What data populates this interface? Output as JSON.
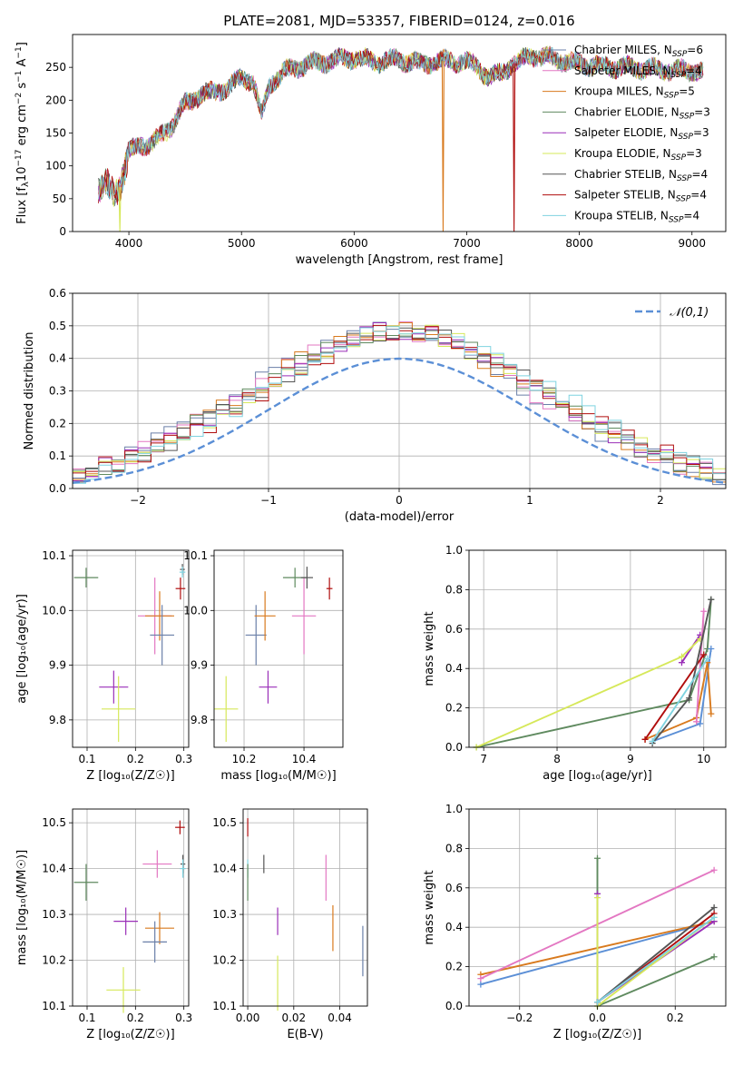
{
  "title": "PLATE=2081, MJD=53357, FIBERID=0124, z=0.016",
  "models": [
    {
      "name": "Chabrier MILES",
      "nssp": "6",
      "color": "#6a7fa8"
    },
    {
      "name": "Salpeter MILES",
      "nssp": "4",
      "color": "#e377c2"
    },
    {
      "name": "Kroupa MILES",
      "nssp": "5",
      "color": "#d87a1e"
    },
    {
      "name": "Chabrier ELODIE",
      "nssp": "3",
      "color": "#5f8a5f"
    },
    {
      "name": "Salpeter ELODIE",
      "nssp": "3",
      "color": "#9a2fb8"
    },
    {
      "name": "Kroupa ELODIE",
      "nssp": "3",
      "color": "#d6e85a"
    },
    {
      "name": "Chabrier STELIB",
      "nssp": "4",
      "color": "#555555"
    },
    {
      "name": "Salpeter STELIB",
      "nssp": "4",
      "color": "#b00d0d"
    },
    {
      "name": "Kroupa STELIB",
      "nssp": "4",
      "color": "#7fd3e0"
    }
  ],
  "chart_data": [
    {
      "id": "spectrum",
      "type": "line",
      "xlabel": "wavelength [Angstrom, rest frame]",
      "ylabel": "Flux [f",
      "xlim": [
        3500,
        9300
      ],
      "ylim": [
        0,
        300
      ],
      "xticks": [
        4000,
        5000,
        6000,
        7000,
        8000,
        9000
      ],
      "yticks": [
        0,
        50,
        100,
        150,
        200,
        250
      ],
      "legend": "upper right",
      "spectrum_envelope": {
        "x": [
          3730,
          3800,
          3870,
          3930,
          4000,
          4100,
          4200,
          4300,
          4400,
          4500,
          4600,
          4700,
          4800,
          4900,
          5000,
          5100,
          5180,
          5250,
          5400,
          5600,
          5800,
          6000,
          6200,
          6400,
          6600,
          6800,
          7000,
          7100,
          7200,
          7300,
          7400,
          7600,
          7800,
          8000,
          8200,
          8400,
          8600,
          8800,
          9000,
          9100
        ],
        "y": [
          60,
          80,
          55,
          70,
          120,
          135,
          130,
          150,
          165,
          195,
          205,
          210,
          215,
          220,
          235,
          230,
          175,
          225,
          245,
          255,
          260,
          265,
          258,
          262,
          255,
          260,
          258,
          250,
          235,
          240,
          255,
          268,
          262,
          255,
          252,
          250,
          248,
          246,
          245,
          243
        ]
      },
      "outlier_dips": [
        {
          "x": 3920,
          "y": 0
        },
        {
          "x": 6790,
          "y": 0
        },
        {
          "x": 7420,
          "y": 0
        }
      ]
    },
    {
      "id": "residual_histogram",
      "type": "bar",
      "xlabel": "(data-model)/error",
      "ylabel": "Normed distribution",
      "xlim": [
        -2.5,
        2.5
      ],
      "ylim": [
        0,
        0.6
      ],
      "xticks": [
        -2,
        -1,
        0,
        1,
        2
      ],
      "yticks": [
        0.0,
        0.1,
        0.2,
        0.3,
        0.4,
        0.5,
        0.6
      ],
      "reference_curve": {
        "name": "𝒩(0,1)",
        "color": "#5b8fd6",
        "style": "dashed"
      },
      "legend": "upper right",
      "bin_width": 0.1
    },
    {
      "id": "age_vs_Z",
      "type": "scatter",
      "xlabel": "Z [log₁₀(Z/Z☉)]",
      "ylabel": "age  [log₁₀(age/yr)]",
      "xlim": [
        0.07,
        0.31
      ],
      "ylim": [
        9.75,
        10.11
      ],
      "xticks": [
        0.1,
        0.2,
        0.3
      ],
      "yticks": [
        9.8,
        9.9,
        10.0,
        10.1
      ],
      "points": [
        {
          "series": "Chabrier ELODIE",
          "x": 0.098,
          "y": 10.06,
          "xerr": 0.025,
          "yerr": 0.018,
          "color": "#5f8a5f"
        },
        {
          "series": "Salpeter ELODIE",
          "x": 0.155,
          "y": 9.86,
          "xerr": 0.03,
          "yerr": 0.03,
          "color": "#9a2fb8"
        },
        {
          "series": "Kroupa ELODIE",
          "x": 0.165,
          "y": 9.82,
          "xerr": 0.035,
          "yerr": 0.06,
          "color": "#d6e85a"
        },
        {
          "series": "Salpeter MILES",
          "x": 0.24,
          "y": 9.99,
          "xerr": 0.035,
          "yerr": 0.07,
          "color": "#e377c2"
        },
        {
          "series": "Kroupa MILES",
          "x": 0.25,
          "y": 9.99,
          "xerr": 0.03,
          "yerr": 0.045,
          "color": "#d87a1e"
        },
        {
          "series": "Chabrier MILES",
          "x": 0.255,
          "y": 9.955,
          "xerr": 0.025,
          "yerr": 0.055,
          "color": "#6a7fa8"
        },
        {
          "series": "Chabrier STELIB",
          "x": 0.297,
          "y": 10.075,
          "xerr": 0.005,
          "yerr": 0.01,
          "color": "#555555"
        },
        {
          "series": "Kroupa STELIB",
          "x": 0.297,
          "y": 10.07,
          "xerr": 0.006,
          "yerr": 0.01,
          "color": "#7fd3e0"
        },
        {
          "series": "Salpeter STELIB",
          "x": 0.293,
          "y": 10.04,
          "xerr": 0.01,
          "yerr": 0.02,
          "color": "#b00d0d"
        }
      ]
    },
    {
      "id": "age_vs_mass",
      "type": "scatter",
      "xlabel": "mass [log₁₀(M/M☉)]",
      "ylabel": "",
      "xlim": [
        10.1,
        10.53
      ],
      "ylim": [
        9.75,
        10.11
      ],
      "xticks": [
        10.2,
        10.4
      ],
      "yticks": [
        9.8,
        9.9,
        10.0,
        10.1
      ],
      "points": [
        {
          "series": "Kroupa ELODIE",
          "x": 10.14,
          "y": 9.82,
          "xerr": 0.04,
          "yerr": 0.06,
          "color": "#d6e85a"
        },
        {
          "series": "Salpeter ELODIE",
          "x": 10.28,
          "y": 9.86,
          "xerr": 0.03,
          "yerr": 0.03,
          "color": "#9a2fb8"
        },
        {
          "series": "Chabrier MILES",
          "x": 10.24,
          "y": 9.955,
          "xerr": 0.035,
          "yerr": 0.055,
          "color": "#6a7fa8"
        },
        {
          "series": "Kroupa MILES",
          "x": 10.27,
          "y": 9.99,
          "xerr": 0.035,
          "yerr": 0.045,
          "color": "#d87a1e"
        },
        {
          "series": "Salpeter MILES",
          "x": 10.4,
          "y": 9.99,
          "xerr": 0.04,
          "yerr": 0.07,
          "color": "#e377c2"
        },
        {
          "series": "Chabrier ELODIE",
          "x": 10.37,
          "y": 10.06,
          "xerr": 0.04,
          "yerr": 0.018,
          "color": "#5f8a5f"
        },
        {
          "series": "Chabrier STELIB",
          "x": 10.41,
          "y": 10.06,
          "xerr": 0.02,
          "yerr": 0.02,
          "color": "#555555"
        },
        {
          "series": "Salpeter STELIB",
          "x": 10.485,
          "y": 10.04,
          "xerr": 0.01,
          "yerr": 0.02,
          "color": "#b00d0d"
        }
      ]
    },
    {
      "id": "mass_weight_vs_age",
      "type": "line",
      "xlabel": "age  [log₁₀(age/yr)]",
      "ylabel": "mass weight",
      "xlim": [
        6.8,
        10.3
      ],
      "ylim": [
        0,
        1.0
      ],
      "xticks": [
        7,
        8,
        9,
        10
      ],
      "yticks": [
        0.0,
        0.2,
        0.4,
        0.6,
        0.8,
        1.0
      ],
      "series": [
        {
          "name": "Chabrier ELODIE",
          "color": "#5f8a5f",
          "x": [
            6.9,
            9.8,
            10.05,
            10.1
          ],
          "y": [
            0.0,
            0.24,
            0.5,
            0.75
          ]
        },
        {
          "name": "Salpeter ELODIE",
          "color": "#9a2fb8",
          "x": [
            9.7,
            9.95
          ],
          "y": [
            0.43,
            0.57
          ]
        },
        {
          "name": "Kroupa ELODIE",
          "color": "#d6e85a",
          "x": [
            6.9,
            9.7,
            9.95
          ],
          "y": [
            0.0,
            0.46,
            0.55
          ]
        },
        {
          "name": "Chabrier MILES",
          "color": "#5b8fd6",
          "x": [
            9.3,
            9.95,
            10.1
          ],
          "y": [
            0.03,
            0.12,
            0.5
          ]
        },
        {
          "name": "Kroupa MILES",
          "color": "#d87a1e",
          "x": [
            9.2,
            9.9,
            10.05,
            10.1
          ],
          "y": [
            0.04,
            0.15,
            0.43,
            0.17
          ]
        },
        {
          "name": "Salpeter MILES",
          "color": "#e377c2",
          "x": [
            9.9,
            10.0
          ],
          "y": [
            0.13,
            0.69
          ]
        },
        {
          "name": "Salpeter STELIB",
          "color": "#b00d0d",
          "x": [
            9.2,
            10.0
          ],
          "y": [
            0.04,
            0.47
          ]
        },
        {
          "name": "Chabrier STELIB",
          "color": "#555555",
          "x": [
            9.3,
            9.8,
            10.1
          ],
          "y": [
            0.02,
            0.25,
            0.75
          ]
        },
        {
          "name": "Kroupa STELIB",
          "color": "#7fd3e0",
          "x": [
            9.3,
            10.05
          ],
          "y": [
            0.03,
            0.45
          ]
        }
      ]
    },
    {
      "id": "mass_vs_Z",
      "type": "scatter",
      "xlabel": "Z [log₁₀(Z/Z☉)]",
      "ylabel": "mass [log₁₀(M/M☉)]",
      "xlim": [
        0.07,
        0.31
      ],
      "ylim": [
        10.1,
        10.53
      ],
      "xticks": [
        0.1,
        0.2,
        0.3
      ],
      "yticks": [
        10.1,
        10.2,
        10.3,
        10.4,
        10.5
      ],
      "points": [
        {
          "series": "Chabrier ELODIE",
          "x": 0.098,
          "y": 10.37,
          "xerr": 0.025,
          "yerr": 0.04,
          "color": "#5f8a5f"
        },
        {
          "series": "Salpeter ELODIE",
          "x": 0.18,
          "y": 10.285,
          "xerr": 0.025,
          "yerr": 0.03,
          "color": "#9a2fb8"
        },
        {
          "series": "Kroupa ELODIE",
          "x": 0.175,
          "y": 10.135,
          "xerr": 0.035,
          "yerr": 0.05,
          "color": "#d6e85a"
        },
        {
          "series": "Salpeter MILES",
          "x": 0.245,
          "y": 10.41,
          "xerr": 0.03,
          "yerr": 0.03,
          "color": "#e377c2"
        },
        {
          "series": "Kroupa MILES",
          "x": 0.25,
          "y": 10.27,
          "xerr": 0.03,
          "yerr": 0.035,
          "color": "#d87a1e"
        },
        {
          "series": "Chabrier MILES",
          "x": 0.24,
          "y": 10.24,
          "xerr": 0.025,
          "yerr": 0.045,
          "color": "#6a7fa8"
        },
        {
          "series": "Chabrier STELIB",
          "x": 0.298,
          "y": 10.41,
          "xerr": 0.005,
          "yerr": 0.02,
          "color": "#555555"
        },
        {
          "series": "Kroupa STELIB",
          "x": 0.298,
          "y": 10.4,
          "xerr": 0.006,
          "yerr": 0.02,
          "color": "#7fd3e0"
        },
        {
          "series": "Salpeter STELIB",
          "x": 0.292,
          "y": 10.49,
          "xerr": 0.01,
          "yerr": 0.015,
          "color": "#b00d0d"
        }
      ]
    },
    {
      "id": "mass_vs_EBV",
      "type": "scatter",
      "xlabel": "E(B-V)",
      "ylabel": "",
      "xlim": [
        -0.002,
        0.052
      ],
      "ylim": [
        10.1,
        10.53
      ],
      "xticks": [
        0.0,
        0.02,
        0.04
      ],
      "yticks": [
        10.1,
        10.2,
        10.3,
        10.4,
        10.5
      ],
      "points": [
        {
          "series": "Salpeter STELIB",
          "x": 0.0,
          "y": 10.49,
          "yerr": 0.02,
          "color": "#b00d0d"
        },
        {
          "series": "Kroupa STELIB",
          "x": 0.0,
          "y": 10.4,
          "yerr": 0.02,
          "color": "#7fd3e0"
        },
        {
          "series": "Chabrier ELODIE",
          "x": 0.0,
          "y": 10.37,
          "yerr": 0.04,
          "color": "#5f8a5f"
        },
        {
          "series": "Chabrier STELIB",
          "x": 0.007,
          "y": 10.41,
          "yerr": 0.02,
          "color": "#555555"
        },
        {
          "series": "Salpeter ELODIE",
          "x": 0.013,
          "y": 10.285,
          "yerr": 0.03,
          "color": "#9a2fb8"
        },
        {
          "series": "Kroupa ELODIE",
          "x": 0.013,
          "y": 10.15,
          "yerr": 0.06,
          "color": "#d6e85a"
        },
        {
          "series": "Salpeter MILES",
          "x": 0.034,
          "y": 10.38,
          "yerr": 0.05,
          "color": "#e377c2"
        },
        {
          "series": "Kroupa MILES",
          "x": 0.037,
          "y": 10.27,
          "yerr": 0.05,
          "color": "#d87a1e"
        },
        {
          "series": "Chabrier MILES",
          "x": 0.05,
          "y": 10.22,
          "yerr": 0.055,
          "color": "#6a7fa8"
        }
      ]
    },
    {
      "id": "mass_weight_vs_Z",
      "type": "line",
      "xlabel": "Z [log₁₀(Z/Z☉)]",
      "ylabel": "mass weight",
      "xlim": [
        -0.33,
        0.33
      ],
      "ylim": [
        0,
        1.0
      ],
      "xticks": [
        -0.2,
        0.0,
        0.2
      ],
      "yticks": [
        0.0,
        0.2,
        0.4,
        0.6,
        0.8,
        1.0
      ],
      "series": [
        {
          "name": "Chabrier MILES",
          "color": "#5b8fd6",
          "x": [
            -0.3,
            0.3
          ],
          "y": [
            0.11,
            0.43
          ]
        },
        {
          "name": "Kroupa MILES",
          "color": "#d87a1e",
          "x": [
            -0.3,
            0.3
          ],
          "y": [
            0.16,
            0.43
          ]
        },
        {
          "name": "Salpeter MILES",
          "color": "#e377c2",
          "x": [
            -0.3,
            0.3
          ],
          "y": [
            0.14,
            0.69
          ]
        },
        {
          "name": "Chabrier ELODIE",
          "color": "#5f8a5f",
          "x": [
            0.0,
            0.0,
            0.3
          ],
          "y": [
            0.75,
            0.0,
            0.25
          ]
        },
        {
          "name": "Salpeter ELODIE",
          "color": "#9a2fb8",
          "x": [
            0.0,
            0.0,
            0.3
          ],
          "y": [
            0.57,
            0.02,
            0.43
          ]
        },
        {
          "name": "Kroupa ELODIE",
          "color": "#d6e85a",
          "x": [
            0.0,
            0.0,
            0.3
          ],
          "y": [
            0.55,
            0.0,
            0.45
          ]
        },
        {
          "name": "Salpeter STELIB",
          "color": "#b00d0d",
          "x": [
            0.0,
            0.3
          ],
          "y": [
            0.02,
            0.47
          ]
        },
        {
          "name": "Chabrier STELIB",
          "color": "#555555",
          "x": [
            0.0,
            0.3
          ],
          "y": [
            0.02,
            0.5
          ]
        },
        {
          "name": "Kroupa STELIB",
          "color": "#7fd3e0",
          "x": [
            0.0,
            0.3
          ],
          "y": [
            0.02,
            0.45
          ]
        }
      ]
    }
  ]
}
